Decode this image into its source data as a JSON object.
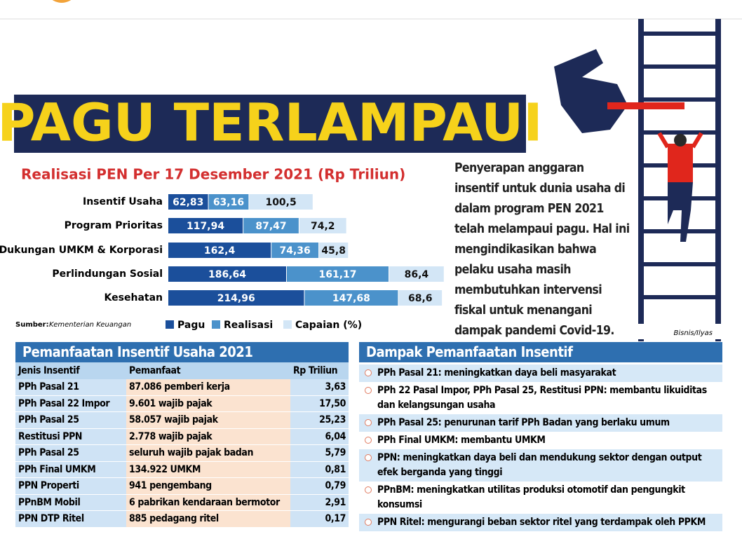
{
  "header": {
    "title": "PAGU TERLAMPAUI"
  },
  "chart_data": {
    "type": "stacked-bar-horizontal",
    "title": "Realisasi PEN Per 17 Desember 2021 (Rp Triliun)",
    "categories": [
      "Insentif Usaha",
      "Program Prioritas",
      "Dukungan UMKM & Korporasi",
      "Perlindungan Sosial",
      "Kesehatan"
    ],
    "series": [
      {
        "name": "Pagu",
        "color": "#1b4f9b",
        "values": [
          62.83,
          117.94,
          162.4,
          186.64,
          214.96
        ],
        "value_labels": [
          "62,83",
          "117,94",
          "162,4",
          "186,64",
          "214,96"
        ]
      },
      {
        "name": "Realisasi",
        "color": "#4b92cb",
        "values": [
          63.16,
          87.47,
          74.36,
          161.17,
          147.68
        ],
        "value_labels": [
          "63,16",
          "87,47",
          "74,36",
          "161,17",
          "147,68"
        ]
      },
      {
        "name": "Capaian (%)",
        "color": "#d3e6f6",
        "values": [
          100.5,
          74.2,
          45.8,
          86.4,
          68.6
        ],
        "value_labels": [
          "100,5",
          "74,2",
          "45,8",
          "86,4",
          "68,6"
        ]
      }
    ]
  },
  "description": "Penyerapan anggaran insentif untuk dunia usaha di dalam program PEN 2021 telah melampaui pagu. Hal ini mengindikasikan bahwa pelaku usaha masih membutuhkan intervensi fiskal untuk menangani dampak pandemi Covid-19.",
  "source": {
    "label": "Sumber:",
    "text": "Kementerian Keuangan"
  },
  "credit": "Bisnis/Ilyas",
  "table": {
    "title": "Pemanfaatan Insentif Usaha 2021",
    "columns": [
      "Jenis Insentif",
      "Pemanfaat",
      "Rp Triliun"
    ],
    "rows": [
      [
        "PPh Pasal 21",
        "87.086 pemberi kerja",
        "3,63"
      ],
      [
        "PPh Pasal 22 Impor",
        "9.601 wajib pajak",
        "17,50"
      ],
      [
        "PPh Pasal 25",
        "58.057 wajib pajak",
        "25,23"
      ],
      [
        "Restitusi PPN",
        "2.778 wajib pajak",
        "6,04"
      ],
      [
        "PPh Pasal 25",
        "seluruh wajib pajak badan",
        "5,79"
      ],
      [
        "PPh Final UMKM",
        "134.922 UMKM",
        "0,81"
      ],
      [
        "PPN Properti",
        "941 pengembang",
        "0,79"
      ],
      [
        "PPnBM Mobil",
        "6 pabrikan kendaraan bermotor",
        "2,91"
      ],
      [
        "PPN DTP Ritel",
        "885 pedagang ritel",
        "0,17"
      ]
    ]
  },
  "impact": {
    "title": "Dampak Pemanfaatan Insentif",
    "items": [
      "PPh Pasal 21: meningkatkan daya beli masyarakat",
      "PPh 22 Pasal Impor, PPh Pasal 25, Restitusi PPN: membantu likuiditas dan kelangsungan usaha",
      "PPh Pasal 25: penurunan tarif PPh Badan yang berlaku umum",
      "PPh Final UMKM: membantu UMKM",
      "PPN: meningkatkan daya beli dan mendukung sektor dengan output efek berganda yang tinggi",
      "PPnBM: meningkatkan utilitas produksi otomotif dan pengungkit konsumsi",
      "PPN Ritel: mengurangi beban sektor ritel yang terdampak oleh PPKM"
    ]
  }
}
